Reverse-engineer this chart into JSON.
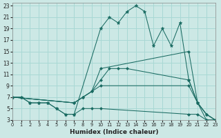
{
  "xlabel": "Humidex (Indice chaleur)",
  "bg_color": "#cce8e5",
  "grid_color": "#a8d8d4",
  "line_color": "#1a6b62",
  "xlim": [
    0,
    23
  ],
  "ylim": [
    3,
    23.5
  ],
  "xticks": [
    0,
    1,
    2,
    3,
    4,
    5,
    6,
    7,
    8,
    9,
    10,
    11,
    12,
    13,
    14,
    15,
    16,
    17,
    18,
    19,
    20,
    21,
    22,
    23
  ],
  "yticks": [
    3,
    5,
    7,
    9,
    11,
    13,
    15,
    17,
    19,
    21,
    23
  ],
  "series": [
    {
      "x": [
        0,
        1,
        2,
        3,
        4,
        5,
        6,
        7,
        10,
        11,
        12,
        13,
        14,
        15,
        16,
        17,
        18,
        19,
        20,
        21,
        22,
        23
      ],
      "y": [
        7,
        7,
        6,
        6,
        6,
        5,
        4,
        4,
        19,
        21,
        20,
        22,
        23,
        22,
        16,
        19,
        16,
        20,
        10,
        6,
        3,
        3
      ],
      "marker": "*",
      "ms": 3.5,
      "lw": 0.75
    },
    {
      "x": [
        0,
        7,
        8,
        9,
        10,
        20,
        21,
        22,
        23
      ],
      "y": [
        7,
        6,
        7,
        8,
        12,
        15,
        6,
        4,
        3
      ],
      "marker": "D",
      "ms": 2,
      "lw": 0.75
    },
    {
      "x": [
        0,
        7,
        8,
        9,
        10,
        11,
        12,
        13,
        20,
        21,
        22,
        23
      ],
      "y": [
        7,
        6,
        7,
        8,
        10,
        12,
        12,
        12,
        10,
        6,
        4,
        3
      ],
      "marker": "D",
      "ms": 2,
      "lw": 0.75
    },
    {
      "x": [
        0,
        7,
        8,
        9,
        10,
        20,
        21,
        22,
        23
      ],
      "y": [
        7,
        6,
        7,
        8,
        9,
        9,
        6,
        4,
        3
      ],
      "marker": "D",
      "ms": 2,
      "lw": 0.75
    },
    {
      "x": [
        0,
        1,
        2,
        3,
        4,
        5,
        6,
        7,
        8,
        9,
        10,
        20,
        21,
        22,
        23
      ],
      "y": [
        7,
        7,
        6,
        6,
        6,
        5,
        4,
        4,
        5,
        5,
        5,
        4,
        4,
        3,
        3
      ],
      "marker": "D",
      "ms": 2,
      "lw": 0.75
    }
  ]
}
